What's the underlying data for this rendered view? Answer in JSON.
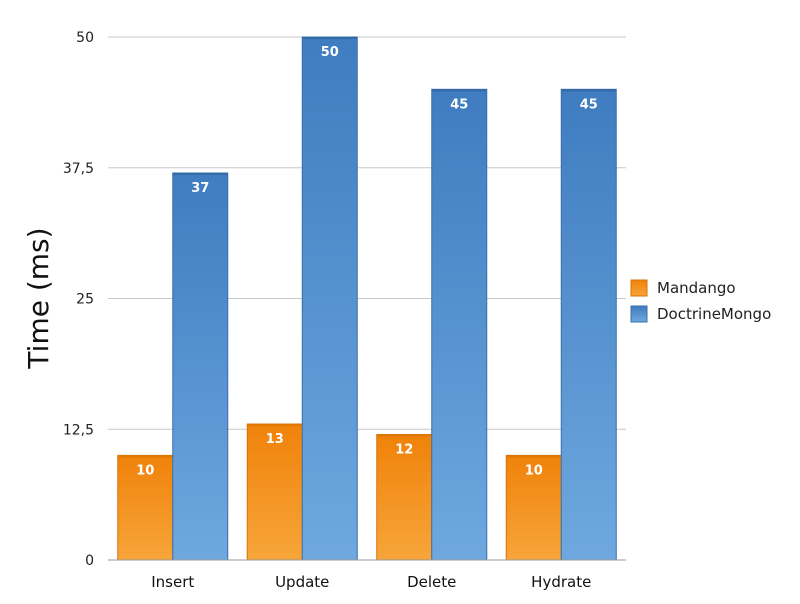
{
  "chart_data": {
    "type": "bar",
    "title": "",
    "xlabel": "",
    "ylabel": "Time (ms)",
    "categories": [
      "Insert",
      "Update",
      "Delete",
      "Hydrate"
    ],
    "series": [
      {
        "name": "Mandango",
        "values": [
          10,
          13,
          12,
          10
        ],
        "color": "#f08a10"
      },
      {
        "name": "DoctrineMongo",
        "values": [
          37,
          50,
          45,
          45
        ],
        "color": "#4a86c8"
      }
    ],
    "ylim": [
      0,
      50
    ],
    "yticks": [
      0,
      12.5,
      25,
      37.5,
      50
    ],
    "ytick_labels": [
      "0",
      "12,5",
      "25",
      "37,5",
      "50"
    ],
    "grid": true,
    "data_labels": true,
    "legend": {
      "position": "right"
    }
  }
}
